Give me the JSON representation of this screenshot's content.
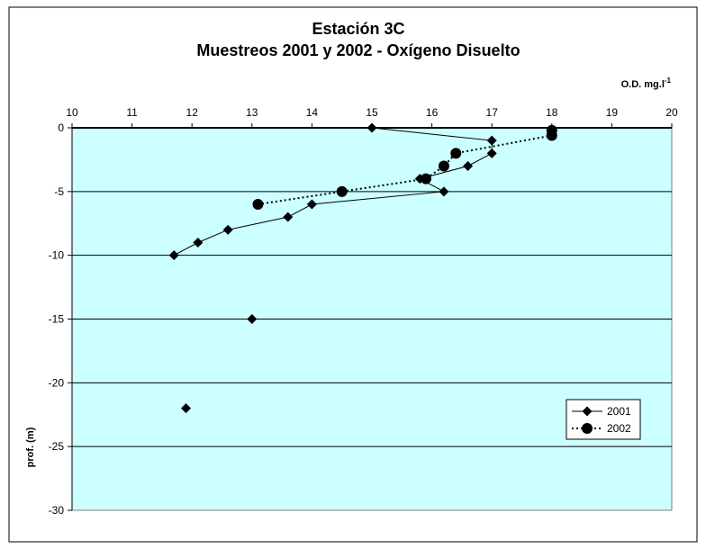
{
  "chart_data": {
    "type": "line",
    "title": "Estación 3C",
    "subtitle": "Muestreos 2001 y 2002 - Oxígeno Disuelto",
    "xlabel": "O.D. mg.l",
    "xlabel_sup": "-1",
    "ylabel": "prof. (m)",
    "xlim": [
      10,
      20
    ],
    "ylim": [
      -30,
      0
    ],
    "x_ticks": [
      "10",
      "11",
      "12",
      "13",
      "14",
      "15",
      "16",
      "17",
      "18",
      "19",
      "20"
    ],
    "y_ticks": [
      "0",
      "-5",
      "-10",
      "-15",
      "-20",
      "-25",
      "-30"
    ],
    "x_axis_position": "top",
    "grid": "horizontal",
    "plot_background": "#ccffff",
    "legend_placement": "bottom-right",
    "series": [
      {
        "name": "2001",
        "marker": "diamond",
        "line": "solid",
        "color": "#000000",
        "points": [
          [
            15.0,
            0
          ],
          [
            17.0,
            -1
          ],
          [
            17.0,
            -2
          ],
          [
            16.6,
            -3
          ],
          [
            15.8,
            -4
          ],
          [
            16.2,
            -5
          ],
          [
            14.0,
            -6
          ],
          [
            13.6,
            -7
          ],
          [
            12.6,
            -8
          ],
          [
            12.1,
            -9
          ],
          [
            11.7,
            -10
          ]
        ],
        "extra_points": [
          [
            13.0,
            -15
          ],
          [
            11.9,
            -22
          ]
        ]
      },
      {
        "name": "2002",
        "marker": "circle",
        "line": "dotted",
        "color": "#000000",
        "points": [
          [
            18.0,
            -0.2
          ],
          [
            18.0,
            -0.6
          ],
          [
            16.4,
            -2
          ],
          [
            16.2,
            -3
          ],
          [
            15.9,
            -4
          ],
          [
            14.5,
            -5
          ],
          [
            13.1,
            -6
          ]
        ]
      }
    ]
  }
}
